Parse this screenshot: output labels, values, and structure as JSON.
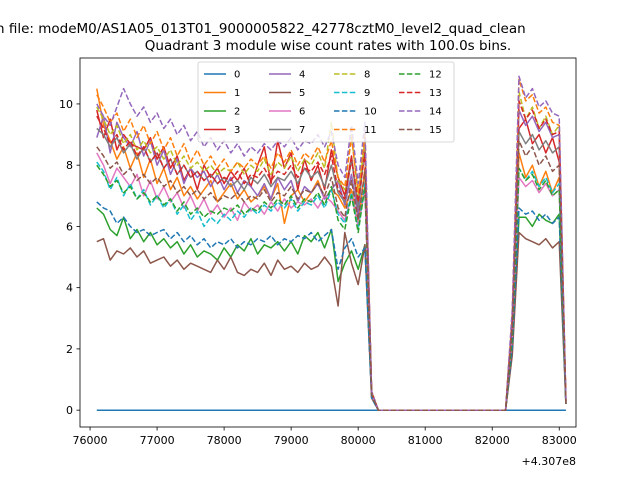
{
  "figure": {
    "suptitle": "n file: modeM0/AS1A05_013T01_9000005822_42778cztM0_level2_quad_clean",
    "title": "Quadrant 3 module wise count rates with 100.0s bins."
  },
  "chart_data": {
    "type": "line",
    "xlim": [
      75850,
      83250
    ],
    "ylim": [
      -0.55,
      11.5
    ],
    "x_offset_label": "+4.307e8",
    "xticks": [
      76000,
      77000,
      78000,
      79000,
      80000,
      81000,
      82000,
      83000
    ],
    "xtick_labels": [
      "76000",
      "77000",
      "78000",
      "79000",
      "80000",
      "81000",
      "82000",
      "83000"
    ],
    "yticks": [
      0,
      2,
      4,
      6,
      8,
      10
    ],
    "ytick_labels": [
      "0",
      "2",
      "4",
      "6",
      "8",
      "10"
    ],
    "legend_position": "upper-center",
    "grid": false,
    "x_start": 76100,
    "x_step": 100,
    "series": [
      {
        "name": "0",
        "color": "#1f77b4",
        "dash": "solid",
        "values": [
          0,
          0,
          0,
          0,
          0,
          0,
          0,
          0,
          0,
          0,
          0,
          0,
          0,
          0,
          0,
          0,
          0,
          0,
          0,
          0,
          0,
          0,
          0,
          0,
          0,
          0,
          0,
          0,
          0,
          0,
          0,
          0,
          0,
          0,
          0,
          0,
          0,
          0,
          0,
          0,
          0,
          0,
          0,
          0,
          0,
          0,
          0,
          0,
          0,
          0,
          0,
          0,
          0,
          0,
          0,
          0,
          0,
          0,
          0,
          0,
          0,
          0,
          0,
          0,
          0,
          0,
          0,
          0,
          0,
          0,
          0
        ]
      },
      {
        "name": "1",
        "color": "#ff7f0e",
        "dash": "solid",
        "values": [
          10.5,
          9.3,
          8.8,
          8.2,
          8.6,
          7.9,
          8.4,
          7.6,
          8.2,
          7.4,
          7.9,
          7.2,
          7.6,
          7.0,
          7.3,
          6.9,
          7.2,
          7.5,
          6.8,
          7.1,
          7.4,
          6.9,
          7.2,
          6.8,
          7.0,
          7.3,
          6.9,
          7.4,
          6.1,
          7.0,
          7.2,
          6.8,
          7.1,
          7.5,
          6.9,
          7.2,
          7.0,
          6.6,
          7.2,
          6.0,
          7.9,
          0.5,
          0,
          0,
          0,
          0,
          0,
          0,
          0,
          0,
          0,
          0,
          0,
          0,
          0,
          0,
          0,
          0,
          0,
          0,
          0,
          0,
          2.6,
          8.4,
          7.6,
          8.0,
          7.3,
          7.8,
          7.1,
          7.6,
          0.2
        ]
      },
      {
        "name": "2",
        "color": "#2ca02c",
        "dash": "solid",
        "values": [
          6.6,
          6.4,
          5.9,
          5.7,
          6.3,
          5.6,
          5.9,
          5.5,
          5.8,
          5.4,
          5.6,
          5.3,
          5.5,
          5.1,
          5.4,
          5.0,
          5.2,
          5.1,
          4.9,
          5.3,
          5.0,
          5.4,
          5.2,
          5.6,
          5.1,
          5.4,
          5.3,
          5.5,
          5.2,
          5.5,
          5.1,
          5.7,
          5.5,
          5.8,
          5.3,
          5.9,
          4.2,
          4.8,
          5.2,
          4.6,
          5.4,
          0.5,
          0,
          0,
          0,
          0,
          0,
          0,
          0,
          0,
          0,
          0,
          0,
          0,
          0,
          0,
          0,
          0,
          0,
          0,
          0,
          0,
          2.0,
          6.3,
          6.3,
          6.0,
          6.4,
          6.2,
          6.1,
          6.4,
          0.2
        ]
      },
      {
        "name": "3",
        "color": "#d62728",
        "dash": "solid",
        "values": [
          9.8,
          8.9,
          9.5,
          8.5,
          9.0,
          8.7,
          8.6,
          8.5,
          8.9,
          8.2,
          8.6,
          7.9,
          8.3,
          7.5,
          7.9,
          7.2,
          8.0,
          7.6,
          7.9,
          7.4,
          7.8,
          7.5,
          7.9,
          7.3,
          8.0,
          8.6,
          7.4,
          8.8,
          7.9,
          8.4,
          7.2,
          8.2,
          7.5,
          8.0,
          7.2,
          8.5,
          7.6,
          7.0,
          8.3,
          6.5,
          8.8,
          0.6,
          0,
          0,
          0,
          0,
          0,
          0,
          0,
          0,
          0,
          0,
          0,
          0,
          0,
          0,
          0,
          0,
          0,
          0,
          0,
          0,
          3.0,
          9.2,
          9.5,
          8.7,
          9.0,
          8.4,
          8.9,
          8.1,
          0.3
        ]
      },
      {
        "name": "4",
        "color": "#9467bd",
        "dash": "solid",
        "values": [
          8.9,
          9.6,
          8.4,
          9.4,
          8.9,
          8.6,
          9.1,
          8.3,
          8.8,
          8.0,
          8.5,
          7.7,
          8.2,
          7.4,
          7.9,
          7.6,
          7.8,
          7.3,
          7.7,
          7.2,
          7.6,
          7.1,
          7.5,
          7.3,
          7.0,
          7.4,
          6.9,
          7.6,
          7.2,
          7.5,
          6.8,
          7.3,
          7.1,
          7.4,
          6.9,
          7.2,
          7.5,
          6.7,
          7.7,
          6.3,
          8.9,
          0.6,
          0,
          0,
          0,
          0,
          0,
          0,
          0,
          0,
          0,
          0,
          0,
          0,
          0,
          0,
          0,
          0,
          0,
          0,
          0,
          0,
          2.8,
          9.8,
          9.3,
          9.6,
          9.1,
          9.4,
          8.9,
          9.0,
          0.3
        ]
      },
      {
        "name": "5",
        "color": "#8c564b",
        "dash": "solid",
        "values": [
          5.5,
          5.6,
          4.9,
          5.2,
          5.1,
          5.3,
          5.0,
          5.2,
          4.8,
          4.9,
          5.0,
          4.7,
          4.9,
          4.6,
          4.8,
          4.7,
          4.6,
          4.5,
          4.9,
          4.6,
          5.0,
          4.5,
          4.4,
          4.6,
          4.5,
          4.8,
          4.4,
          4.9,
          4.6,
          4.7,
          4.5,
          4.8,
          4.6,
          4.7,
          5.0,
          4.7,
          3.4,
          5.8,
          4.8,
          4.1,
          5.4,
          0.4,
          0,
          0,
          0,
          0,
          0,
          0,
          0,
          0,
          0,
          0,
          0,
          0,
          0,
          0,
          0,
          0,
          0,
          0,
          0,
          0,
          1.8,
          5.8,
          5.6,
          5.5,
          5.4,
          5.6,
          5.3,
          5.5,
          0.2
        ]
      },
      {
        "name": "6",
        "color": "#e377c2",
        "dash": "solid",
        "values": [
          8.4,
          8.0,
          7.4,
          7.9,
          7.6,
          7.3,
          7.7,
          7.0,
          7.5,
          6.9,
          7.3,
          6.8,
          7.1,
          6.6,
          7.0,
          6.5,
          6.9,
          6.4,
          6.7,
          6.3,
          6.6,
          6.2,
          6.8,
          6.5,
          6.7,
          6.4,
          6.8,
          6.5,
          6.9,
          6.6,
          6.8,
          6.7,
          6.9,
          6.6,
          7.0,
          6.8,
          6.5,
          6.2,
          7.0,
          6.0,
          7.2,
          0.5,
          0,
          0,
          0,
          0,
          0,
          0,
          0,
          0,
          0,
          0,
          0,
          0,
          0,
          0,
          0,
          0,
          0,
          0,
          0,
          0,
          2.4,
          7.6,
          7.3,
          7.5,
          7.1,
          7.4,
          7.0,
          7.2,
          0.2
        ]
      },
      {
        "name": "7",
        "color": "#7f7f7f",
        "dash": "solid",
        "values": [
          9.2,
          9.0,
          8.6,
          8.9,
          8.4,
          8.7,
          8.2,
          8.6,
          8.1,
          8.4,
          7.9,
          8.2,
          7.7,
          8.0,
          7.6,
          7.8,
          7.5,
          7.7,
          7.4,
          7.6,
          7.3,
          7.5,
          7.2,
          7.6,
          7.4,
          7.7,
          7.3,
          7.6,
          7.5,
          7.8,
          7.4,
          7.9,
          7.6,
          7.8,
          7.3,
          8.0,
          7.1,
          6.8,
          8.2,
          6.6,
          8.6,
          0.6,
          0,
          0,
          0,
          0,
          0,
          0,
          0,
          0,
          0,
          0,
          0,
          0,
          0,
          0,
          0,
          0,
          0,
          0,
          0,
          0,
          2.9,
          9.1,
          8.7,
          9.0,
          8.5,
          8.8,
          8.4,
          8.6,
          0.3
        ]
      },
      {
        "name": "8",
        "color": "#bcbd22",
        "dash": "dashed",
        "values": [
          9.9,
          9.5,
          9.0,
          9.3,
          8.7,
          9.0,
          8.5,
          8.8,
          8.4,
          8.6,
          8.2,
          8.5,
          8.0,
          8.3,
          7.9,
          8.1,
          7.8,
          8.0,
          7.7,
          7.9,
          7.8,
          8.1,
          7.7,
          8.0,
          7.8,
          8.2,
          7.7,
          8.1,
          7.9,
          8.3,
          7.8,
          8.2,
          8.0,
          8.4,
          7.9,
          9.4,
          7.5,
          7.2,
          9.0,
          7.0,
          8.8,
          0.6,
          0,
          0,
          0,
          0,
          0,
          0,
          0,
          0,
          0,
          0,
          0,
          0,
          0,
          0,
          0,
          0,
          0,
          0,
          0,
          0,
          3.1,
          10.4,
          9.5,
          9.9,
          9.2,
          9.6,
          9.0,
          9.3,
          0.3
        ]
      },
      {
        "name": "9",
        "color": "#17becf",
        "dash": "dashed",
        "values": [
          8.1,
          7.8,
          7.2,
          7.6,
          7.0,
          7.4,
          6.9,
          7.2,
          6.7,
          7.0,
          6.6,
          6.9,
          6.4,
          6.7,
          6.2,
          6.5,
          6.0,
          6.3,
          6.1,
          6.4,
          6.2,
          6.5,
          6.3,
          6.6,
          6.4,
          6.7,
          6.5,
          6.8,
          6.6,
          6.9,
          6.5,
          6.8,
          6.7,
          7.0,
          6.6,
          7.2,
          6.4,
          6.1,
          7.1,
          5.9,
          7.4,
          0.5,
          0,
          0,
          0,
          0,
          0,
          0,
          0,
          0,
          0,
          0,
          0,
          0,
          0,
          0,
          0,
          0,
          0,
          0,
          0,
          0,
          2.5,
          7.9,
          7.5,
          7.8,
          7.3,
          7.6,
          7.1,
          7.4,
          0.2
        ]
      },
      {
        "name": "10",
        "color": "#1f77b4",
        "dash": "dashed",
        "values": [
          6.8,
          6.6,
          6.5,
          6.1,
          6.3,
          6.0,
          5.8,
          5.9,
          5.7,
          5.8,
          5.9,
          5.6,
          5.8,
          5.5,
          5.7,
          5.4,
          5.6,
          5.3,
          5.5,
          5.4,
          5.6,
          5.3,
          5.5,
          5.4,
          5.6,
          5.5,
          5.7,
          5.4,
          5.6,
          5.5,
          5.7,
          5.6,
          5.8,
          5.5,
          5.7,
          5.9,
          4.6,
          5.3,
          5.6,
          5.0,
          5.3,
          0.4,
          0,
          0,
          0,
          0,
          0,
          0,
          0,
          0,
          0,
          0,
          0,
          0,
          0,
          0,
          0,
          0,
          0,
          0,
          0,
          0,
          2.1,
          6.6,
          6.4,
          6.5,
          6.2,
          6.4,
          6.1,
          6.3,
          0.2
        ]
      },
      {
        "name": "11",
        "color": "#ff7f0e",
        "dash": "dashed",
        "values": [
          10.3,
          9.9,
          9.4,
          9.7,
          9.1,
          9.5,
          8.9,
          9.3,
          8.7,
          9.1,
          8.5,
          8.9,
          8.3,
          8.7,
          8.1,
          8.5,
          8.0,
          8.3,
          7.9,
          8.2,
          7.8,
          8.1,
          7.9,
          8.2,
          8.0,
          8.3,
          7.9,
          8.4,
          8.1,
          8.5,
          8.0,
          8.4,
          8.2,
          8.6,
          8.1,
          8.8,
          7.6,
          7.3,
          8.9,
          7.1,
          9.0,
          0.6,
          0,
          0,
          0,
          0,
          0,
          0,
          0,
          0,
          0,
          0,
          0,
          0,
          0,
          0,
          0,
          0,
          0,
          0,
          0,
          0,
          3.2,
          10.8,
          10.1,
          10.3,
          9.7,
          9.9,
          9.4,
          9.3,
          0.3
        ]
      },
      {
        "name": "12",
        "color": "#2ca02c",
        "dash": "dashed",
        "values": [
          8.0,
          7.7,
          7.3,
          7.5,
          7.1,
          7.3,
          6.9,
          7.1,
          6.8,
          7.0,
          6.7,
          6.9,
          6.5,
          6.8,
          6.4,
          6.6,
          6.3,
          6.5,
          6.4,
          6.6,
          6.5,
          6.7,
          6.4,
          6.6,
          6.5,
          6.8,
          6.6,
          6.9,
          6.7,
          7.0,
          6.6,
          6.9,
          6.8,
          7.1,
          6.7,
          7.3,
          6.2,
          5.9,
          7.0,
          5.8,
          7.3,
          0.5,
          0,
          0,
          0,
          0,
          0,
          0,
          0,
          0,
          0,
          0,
          0,
          0,
          0,
          0,
          0,
          0,
          0,
          0,
          0,
          0,
          2.4,
          7.9,
          7.5,
          7.7,
          7.2,
          7.5,
          7.0,
          7.2,
          0.2
        ]
      },
      {
        "name": "13",
        "color": "#d62728",
        "dash": "dashed",
        "values": [
          9.6,
          9.2,
          8.7,
          9.0,
          8.5,
          8.8,
          8.3,
          8.6,
          8.1,
          8.4,
          7.9,
          8.2,
          7.7,
          8.0,
          7.6,
          7.8,
          7.5,
          7.7,
          7.4,
          7.6,
          7.5,
          7.8,
          7.4,
          7.7,
          7.6,
          7.9,
          7.5,
          7.8,
          7.7,
          8.0,
          7.6,
          7.9,
          7.8,
          8.1,
          7.7,
          8.3,
          7.2,
          6.9,
          8.2,
          6.8,
          8.4,
          0.6,
          0,
          0,
          0,
          0,
          0,
          0,
          0,
          0,
          0,
          0,
          0,
          0,
          0,
          0,
          0,
          0,
          0,
          0,
          0,
          0,
          3.0,
          10.1,
          9.5,
          9.8,
          9.2,
          9.5,
          9.0,
          9.1,
          0.3
        ]
      },
      {
        "name": "14",
        "color": "#9467bd",
        "dash": "dashed",
        "values": [
          10.0,
          9.6,
          9.3,
          9.9,
          10.5,
          10.0,
          9.6,
          9.9,
          9.4,
          9.7,
          9.2,
          9.5,
          9.0,
          9.3,
          8.8,
          9.1,
          8.6,
          8.9,
          8.5,
          8.8,
          8.4,
          8.7,
          8.3,
          8.6,
          8.4,
          8.7,
          8.5,
          8.8,
          8.6,
          8.9,
          8.5,
          8.8,
          8.7,
          9.0,
          8.6,
          9.1,
          8.0,
          7.6,
          9.3,
          7.4,
          9.4,
          0.6,
          0,
          0,
          0,
          0,
          0,
          0,
          0,
          0,
          0,
          0,
          0,
          0,
          0,
          0,
          0,
          0,
          0,
          0,
          0,
          0,
          3.3,
          10.9,
          10.2,
          10.5,
          9.9,
          10.1,
          9.7,
          9.6,
          0.3
        ]
      },
      {
        "name": "15",
        "color": "#8c564b",
        "dash": "dashed",
        "values": [
          8.6,
          8.3,
          7.9,
          8.1,
          7.7,
          7.9,
          7.5,
          7.7,
          7.4,
          7.6,
          7.3,
          7.5,
          7.1,
          7.3,
          7.0,
          7.2,
          6.9,
          7.1,
          6.8,
          7.0,
          6.9,
          7.1,
          6.8,
          7.0,
          6.9,
          7.2,
          6.8,
          7.1,
          7.0,
          7.3,
          6.9,
          7.2,
          7.1,
          7.4,
          7.0,
          7.6,
          6.6,
          6.3,
          7.5,
          6.2,
          7.8,
          0.5,
          0,
          0,
          0,
          0,
          0,
          0,
          0,
          0,
          0,
          0,
          0,
          0,
          0,
          0,
          0,
          0,
          0,
          0,
          0,
          0,
          2.7,
          8.8,
          8.3,
          8.6,
          8.0,
          8.3,
          7.8,
          8.0,
          0.2
        ]
      }
    ]
  }
}
